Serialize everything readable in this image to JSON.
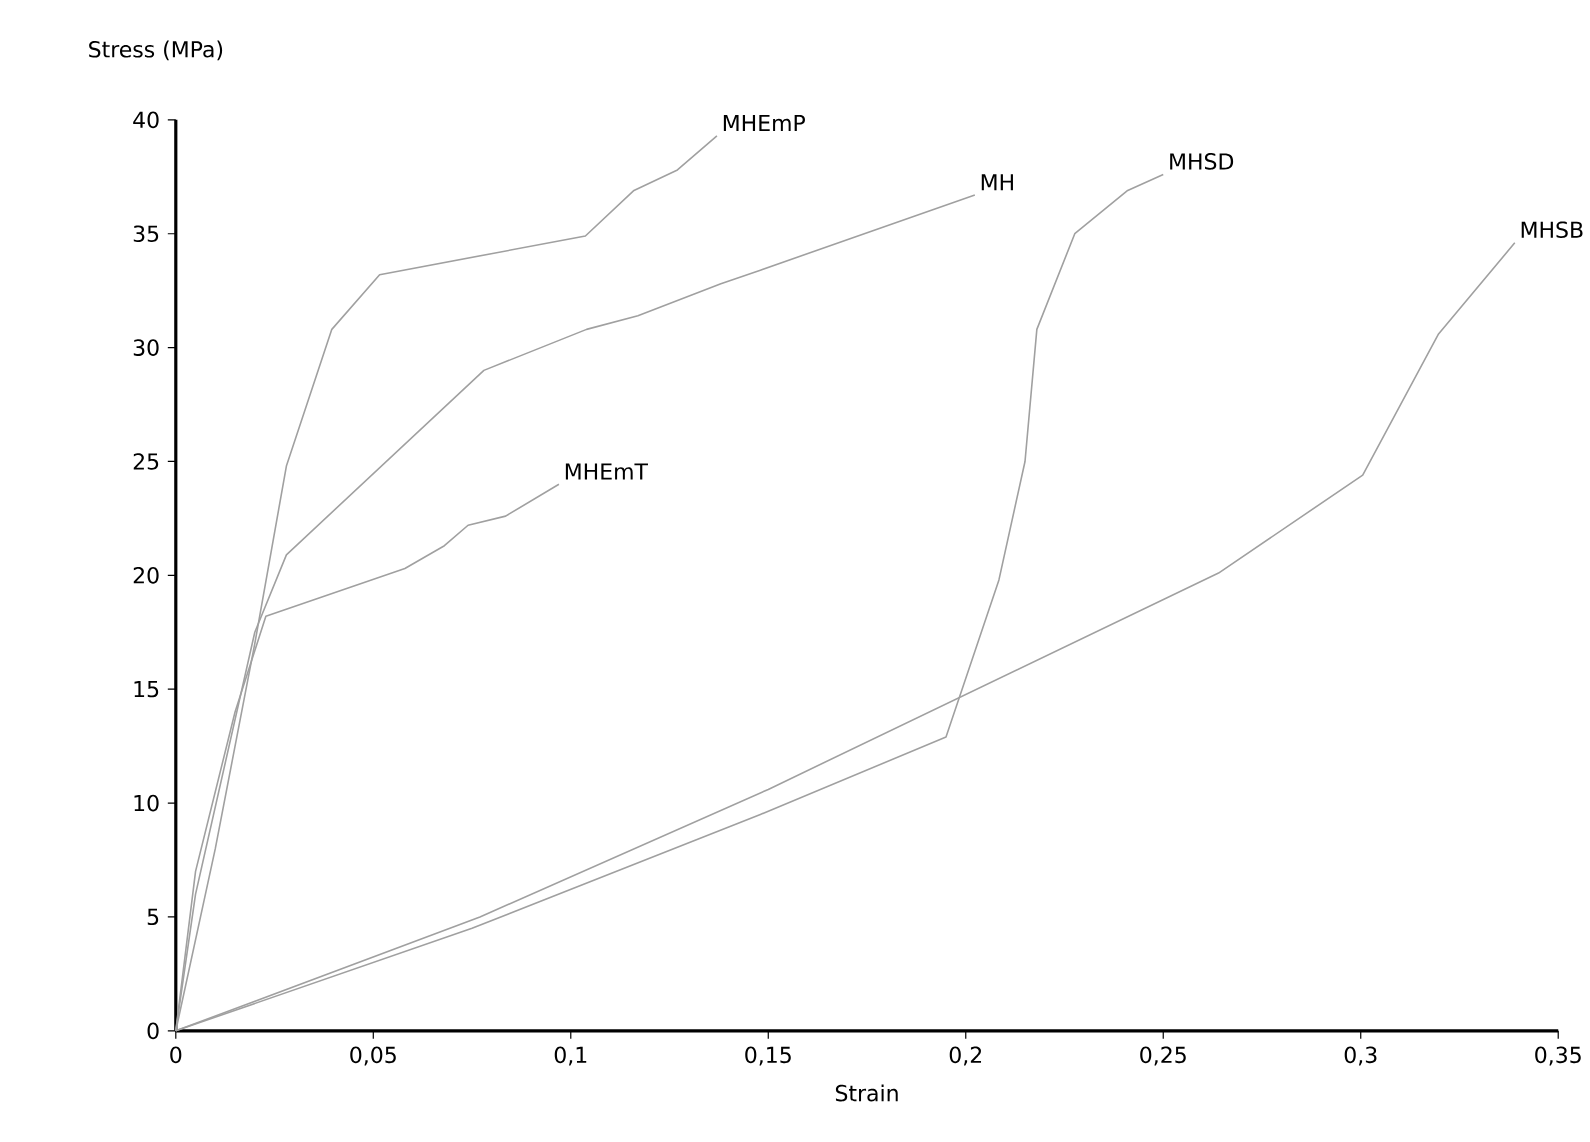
{
  "chart_data": {
    "type": "line",
    "xlabel": "Strain",
    "ylabel": "Stress (MPa)",
    "xlim": [
      0,
      0.35
    ],
    "ylim": [
      0,
      40
    ],
    "xticks": [
      0,
      {
        "value": 0.05,
        "label": "0,05"
      },
      {
        "value": 0.1,
        "label": "0,1"
      },
      {
        "value": 0.15,
        "label": "0,15"
      },
      {
        "value": 0.2,
        "label": "0,2"
      },
      {
        "value": 0.25,
        "label": "0,25"
      },
      {
        "value": 0.3,
        "label": "0,3"
      },
      {
        "value": 0.35,
        "label": "0,35"
      }
    ],
    "yticks": [
      0,
      5,
      10,
      15,
      20,
      25,
      30,
      35,
      40
    ],
    "grid": false,
    "legend": false,
    "marker": "none",
    "line_style": "solid",
    "series": [
      {
        "name": "MHEmP",
        "color": "#a0a0a0",
        "x": [
          0,
          0.01,
          0.02,
          0.028,
          0.0395,
          0.0516,
          0.1037,
          0.116,
          0.127,
          0.137
        ],
        "values": [
          0,
          8,
          17,
          24.8,
          30.8,
          33.2,
          34.9,
          36.9,
          37.8,
          39.3
        ]
      },
      {
        "name": "MH",
        "color": "#a0a0a0",
        "x": [
          0,
          0.005,
          0.02,
          0.028,
          0.078,
          0.104,
          0.117,
          0.138,
          0.148,
          0.2023
        ],
        "values": [
          0,
          6,
          17.5,
          20.9,
          29,
          30.8,
          31.4,
          32.8,
          33.4,
          36.7
        ]
      },
      {
        "name": "MHEmT",
        "color": "#a0a0a0",
        "x": [
          0,
          0.005,
          0.015,
          0.0228,
          0.058,
          0.068,
          0.074,
          0.0835,
          0.097
        ],
        "values": [
          0,
          7,
          14,
          18.2,
          20.3,
          21.3,
          22.2,
          22.6,
          24
        ]
      },
      {
        "name": "MHSD",
        "color": "#a0a0a0",
        "x": [
          0,
          0.075,
          0.148,
          0.195,
          0.2084,
          0.215,
          0.218,
          0.2276,
          0.241,
          0.25
        ],
        "values": [
          0,
          4.5,
          9.5,
          12.9,
          19.8,
          25,
          30.8,
          35,
          36.9,
          37.6
        ]
      },
      {
        "name": "MHSB",
        "color": "#a0a0a0",
        "x": [
          0,
          0.077,
          0.15,
          0.264,
          0.3005,
          0.3197,
          0.339
        ],
        "values": [
          0,
          5,
          10.6,
          20.1,
          24.4,
          30.6,
          34.6
        ]
      }
    ]
  }
}
